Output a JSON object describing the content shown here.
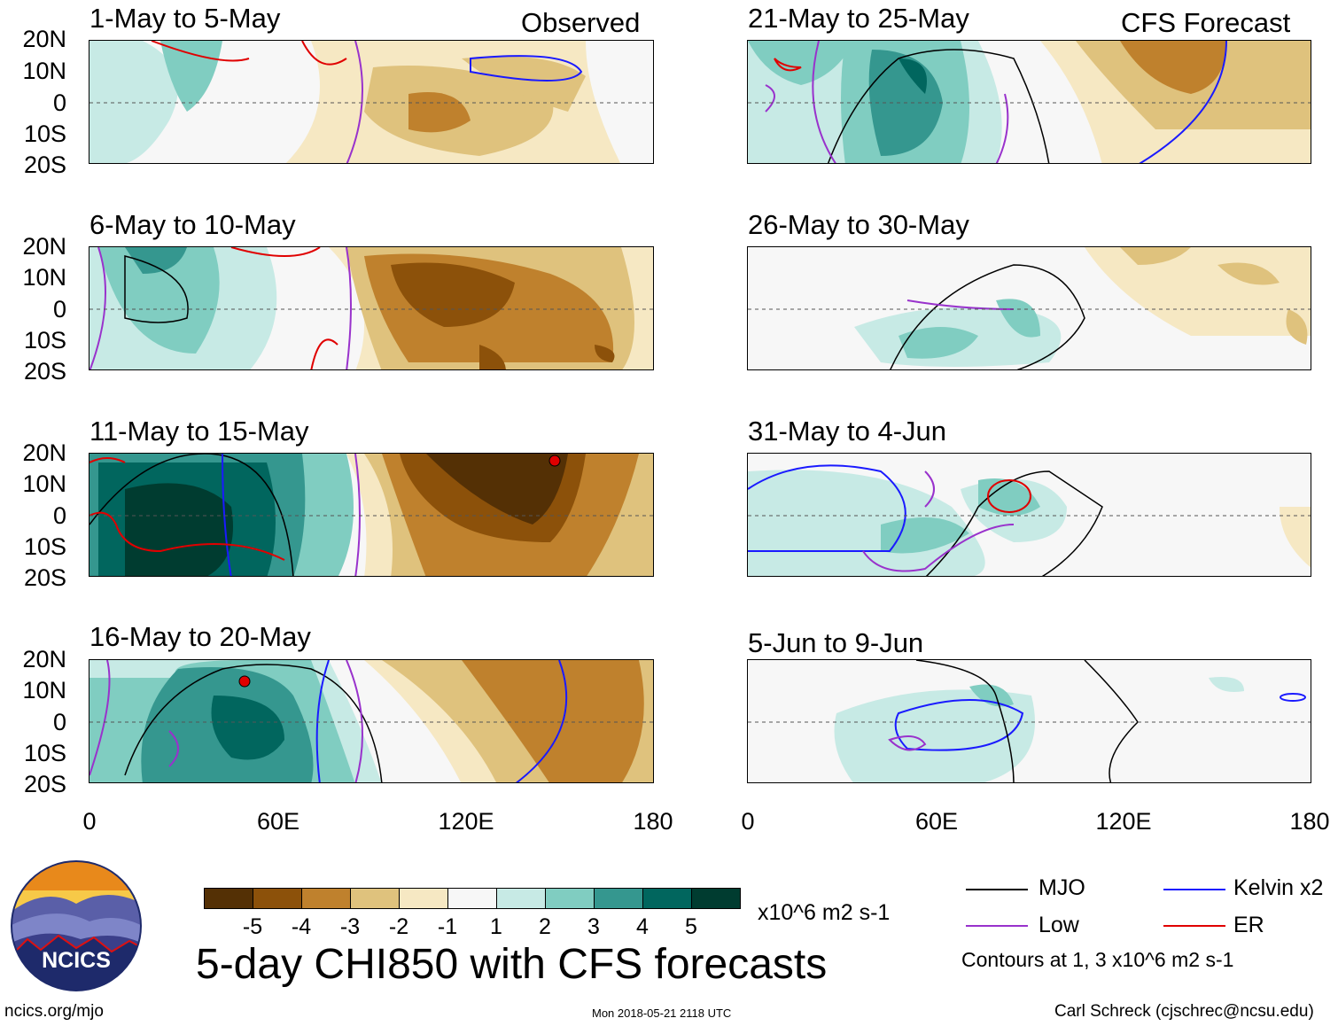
{
  "observed_label": "Observed",
  "forecast_label": "CFS Forecast",
  "panels": [
    {
      "title": "1-May to 5-May"
    },
    {
      "title": "6-May to 10-May"
    },
    {
      "title": "11-May to 15-May"
    },
    {
      "title": "16-May to 20-May"
    },
    {
      "title": "21-May to 25-May"
    },
    {
      "title": "26-May to 30-May"
    },
    {
      "title": "31-May to 4-Jun"
    },
    {
      "title": "5-Jun to 9-Jun"
    }
  ],
  "y_ticks": [
    "20N",
    "10N",
    "0",
    "10S",
    "20S"
  ],
  "x_ticks": [
    "0",
    "60E",
    "120E",
    "180"
  ],
  "colorbar": {
    "colors": [
      "#543005",
      "#8c510a",
      "#bf812d",
      "#dfc27d",
      "#f6e8c3",
      "#f7f7f7",
      "#c7eae5",
      "#80cdc1",
      "#35978f",
      "#01665e",
      "#003c30"
    ],
    "ticks": [
      "-5",
      "-4",
      "-3",
      "-2",
      "-1",
      "1",
      "2",
      "3",
      "4",
      "5"
    ],
    "units": "x10^6 m2 s-1"
  },
  "main_title": "5-day CHI850 with CFS forecasts",
  "legend": [
    {
      "label": "MJO",
      "color": "#000000"
    },
    {
      "label": "Kelvin x2",
      "color": "#1a1aff"
    },
    {
      "label": "Low",
      "color": "#9932cc"
    },
    {
      "label": "ER",
      "color": "#e00000"
    }
  ],
  "contour_note": "Contours at 1, 3 x10^6 m2 s-1",
  "logo_text": "NCICS",
  "footer_left": "ncics.org/mjo",
  "footer_center": "Mon 2018-05-21 2118 UTC",
  "footer_right": "Carl Schreck (cjschrec@ncsu.edu)"
}
